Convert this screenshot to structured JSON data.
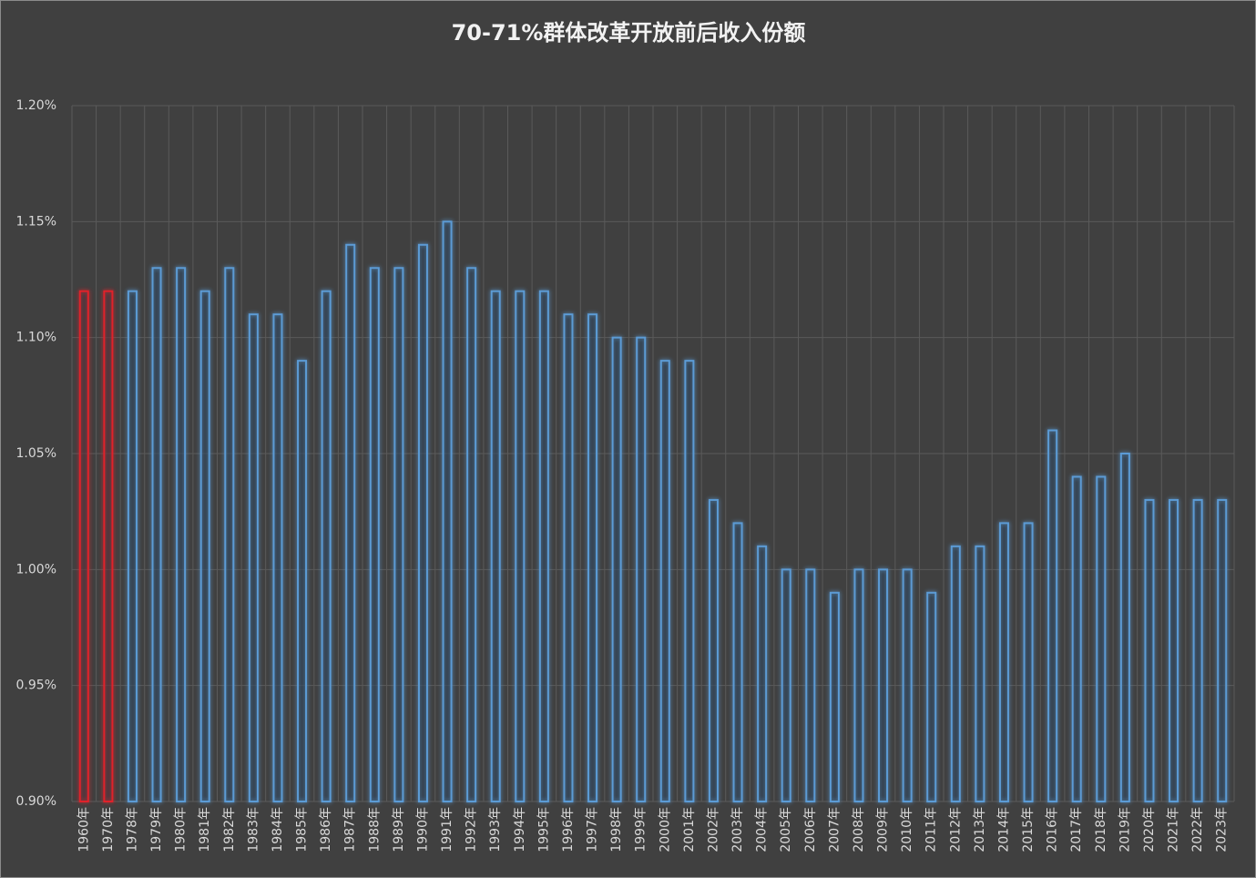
{
  "chart_data": {
    "type": "bar",
    "title": "70-71%群体改革开放前后收入份额",
    "categories": [
      "1960年",
      "1970年",
      "1978年",
      "1979年",
      "1980年",
      "1981年",
      "1982年",
      "1983年",
      "1984年",
      "1985年",
      "1986年",
      "1987年",
      "1988年",
      "1989年",
      "1990年",
      "1991年",
      "1992年",
      "1993年",
      "1994年",
      "1995年",
      "1996年",
      "1997年",
      "1998年",
      "1999年",
      "2000年",
      "2001年",
      "2002年",
      "2003年",
      "2004年",
      "2005年",
      "2006年",
      "2007年",
      "2008年",
      "2009年",
      "2010年",
      "2011年",
      "2012年",
      "2013年",
      "2014年",
      "2015年",
      "2016年",
      "2017年",
      "2018年",
      "2019年",
      "2020年",
      "2021年",
      "2022年",
      "2023年"
    ],
    "values": [
      1.12,
      1.12,
      1.12,
      1.13,
      1.13,
      1.12,
      1.13,
      1.11,
      1.11,
      1.09,
      1.12,
      1.14,
      1.13,
      1.13,
      1.14,
      1.15,
      1.13,
      1.12,
      1.12,
      1.12,
      1.11,
      1.11,
      1.1,
      1.1,
      1.09,
      1.09,
      1.03,
      1.02,
      1.01,
      1.0,
      1.0,
      0.99,
      1.0,
      1.0,
      1.0,
      0.99,
      1.01,
      1.01,
      1.02,
      1.02,
      1.06,
      1.04,
      1.04,
      1.05,
      1.03,
      1.03,
      1.03,
      1.03
    ],
    "colors": [
      "#e0202a",
      "#e0202a",
      "#5b9bd5",
      "#5b9bd5",
      "#5b9bd5",
      "#5b9bd5",
      "#5b9bd5",
      "#5b9bd5",
      "#5b9bd5",
      "#5b9bd5",
      "#5b9bd5",
      "#5b9bd5",
      "#5b9bd5",
      "#5b9bd5",
      "#5b9bd5",
      "#5b9bd5",
      "#5b9bd5",
      "#5b9bd5",
      "#5b9bd5",
      "#5b9bd5",
      "#5b9bd5",
      "#5b9bd5",
      "#5b9bd5",
      "#5b9bd5",
      "#5b9bd5",
      "#5b9bd5",
      "#5b9bd5",
      "#5b9bd5",
      "#5b9bd5",
      "#5b9bd5",
      "#5b9bd5",
      "#5b9bd5",
      "#5b9bd5",
      "#5b9bd5",
      "#5b9bd5",
      "#5b9bd5",
      "#5b9bd5",
      "#5b9bd5",
      "#5b9bd5",
      "#5b9bd5",
      "#5b9bd5",
      "#5b9bd5",
      "#5b9bd5",
      "#5b9bd5",
      "#5b9bd5",
      "#5b9bd5",
      "#5b9bd5",
      "#5b9bd5"
    ],
    "ylim": [
      0.9,
      1.2
    ],
    "yticks": [
      {
        "value": 0.9,
        "label": "0.90%"
      },
      {
        "value": 0.95,
        "label": "0.95%"
      },
      {
        "value": 1.0,
        "label": "1.00%"
      },
      {
        "value": 1.05,
        "label": "1.05%"
      },
      {
        "value": 1.1,
        "label": "1.10%"
      },
      {
        "value": 1.15,
        "label": "1.15%"
      },
      {
        "value": 1.2,
        "label": "1.20%"
      }
    ],
    "grid": true
  }
}
